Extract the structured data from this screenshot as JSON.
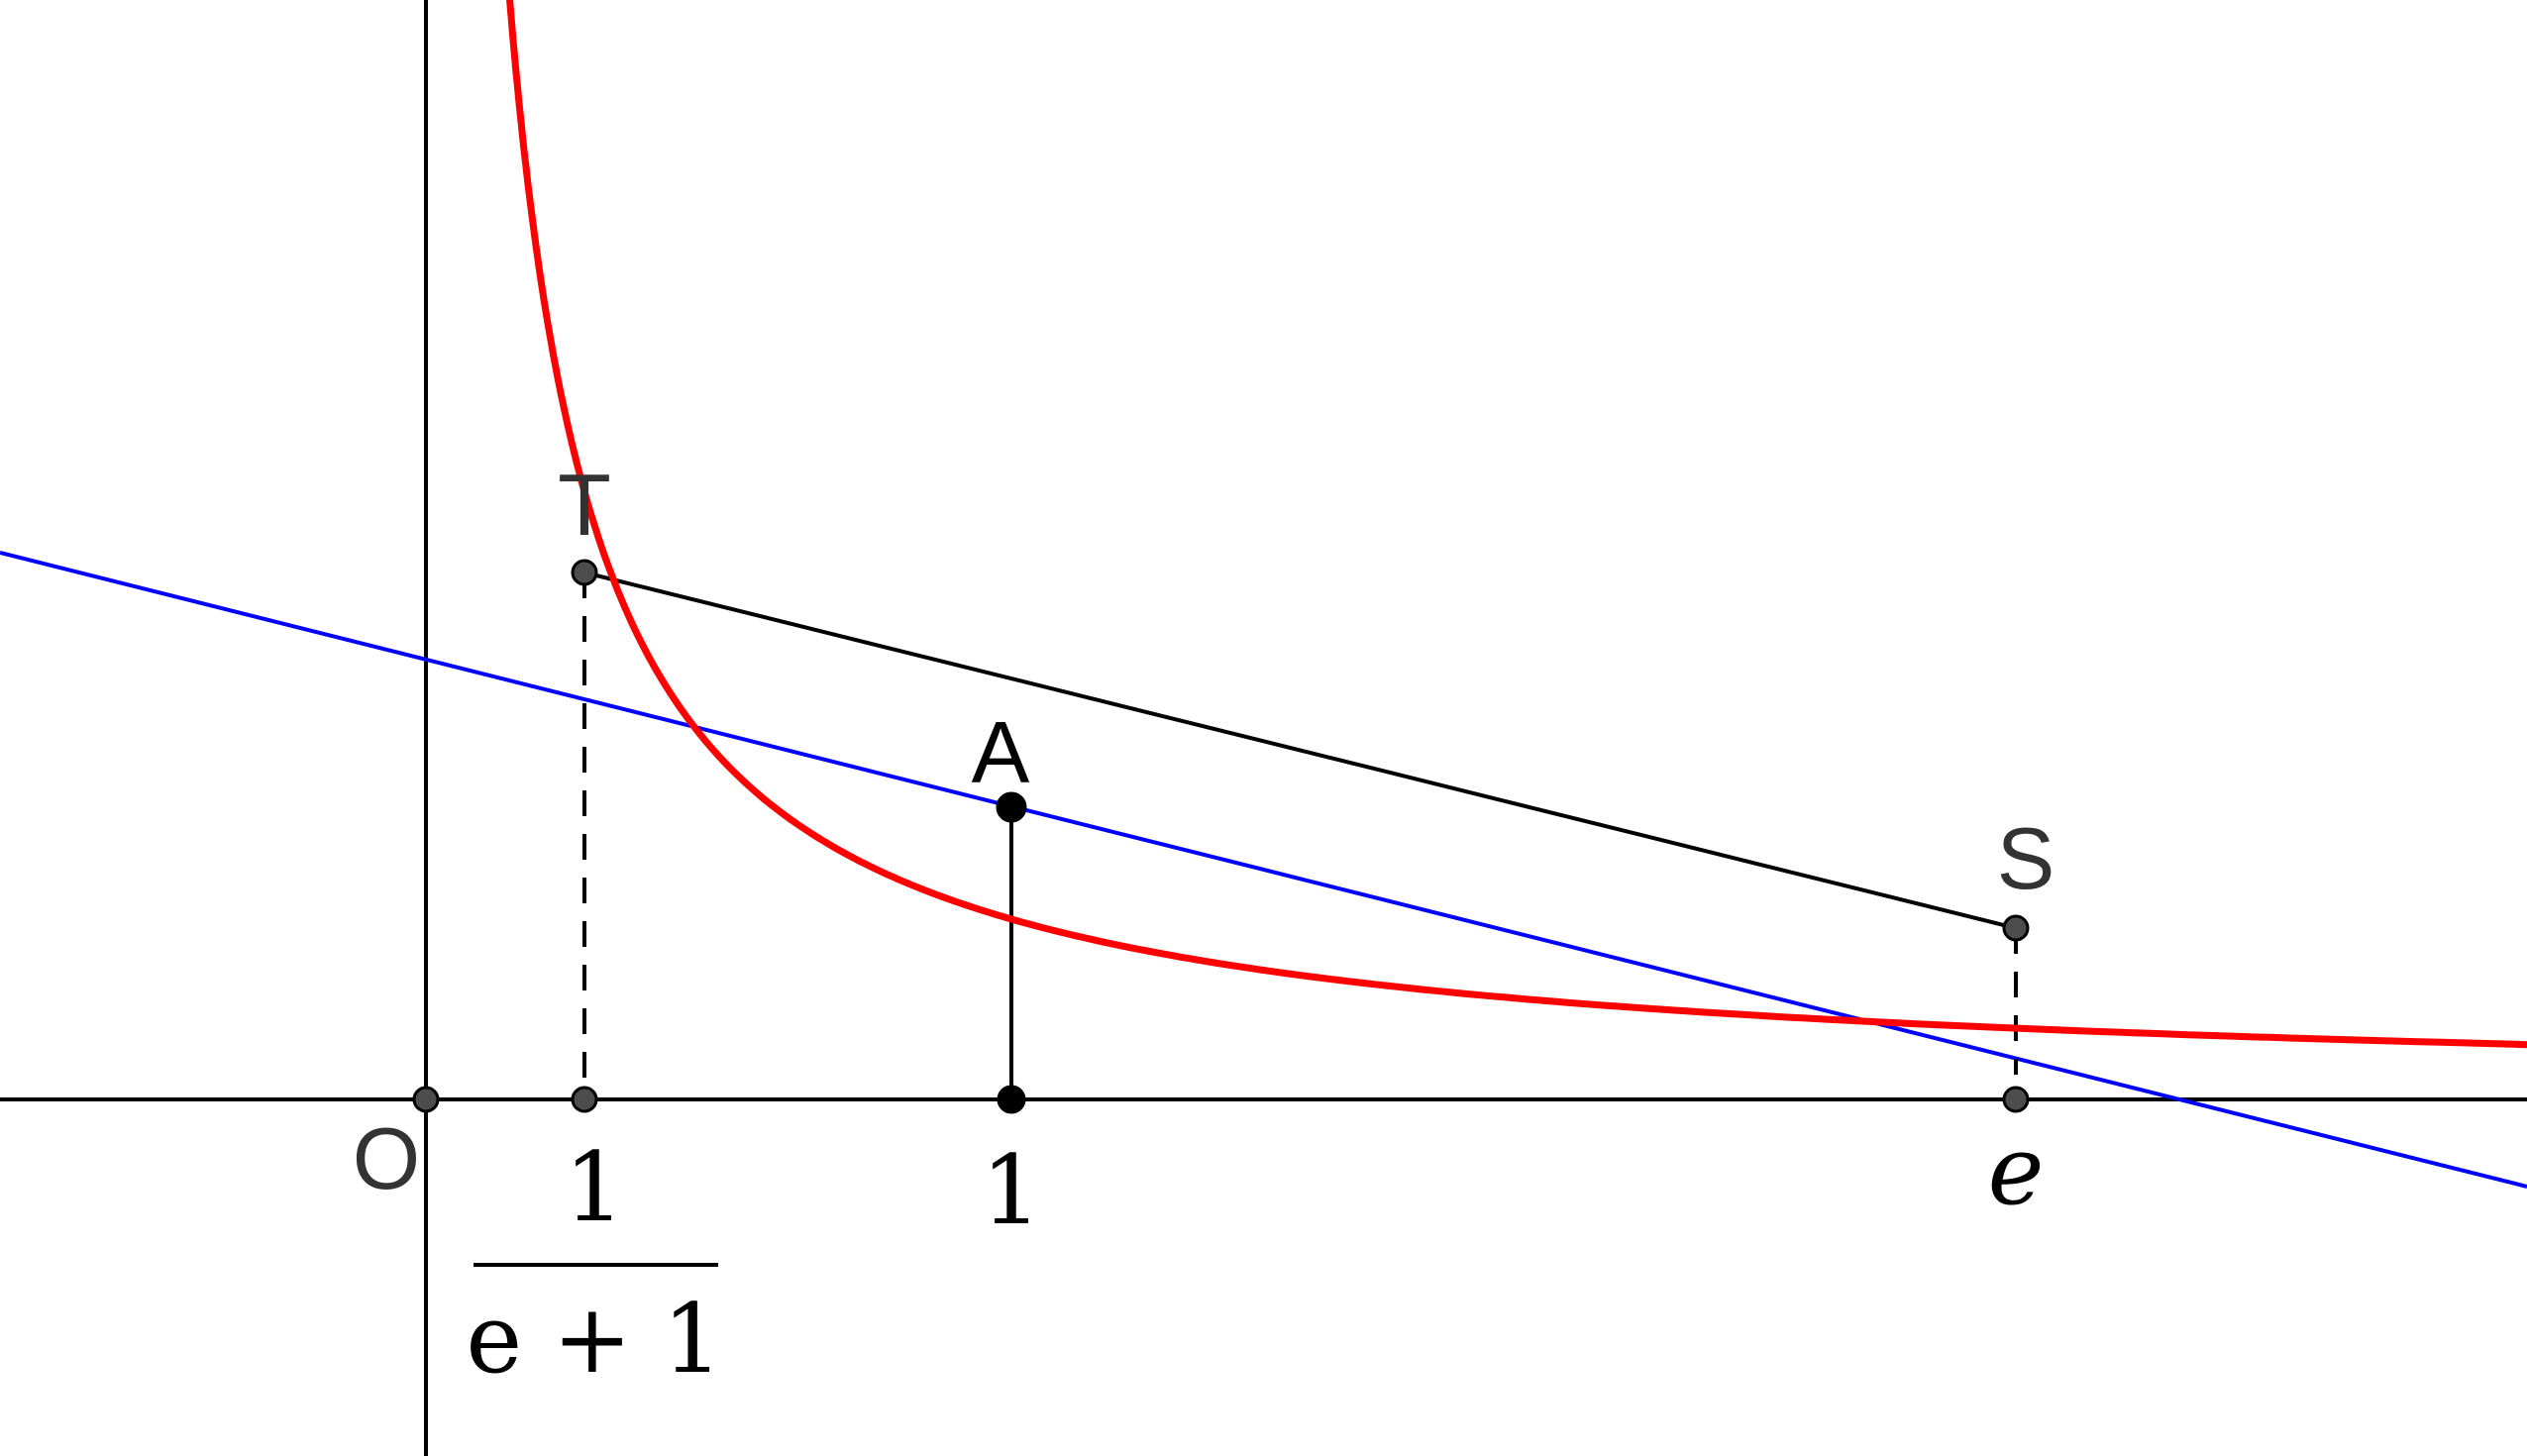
{
  "colors": {
    "curve": "#ff0000",
    "tangent": "#0000ff",
    "segment": "#000000",
    "axis": "#000000",
    "point_fill_black": "#000000",
    "point_fill_gray": "#4d4d4d",
    "label_gray": "#333333"
  },
  "points": {
    "origin": "O",
    "t": "T",
    "a": "A",
    "s": "S"
  },
  "x_ticks": {
    "one": "1",
    "e": "e",
    "frac_numerator": "1",
    "frac_denominator": "e + 1"
  }
}
